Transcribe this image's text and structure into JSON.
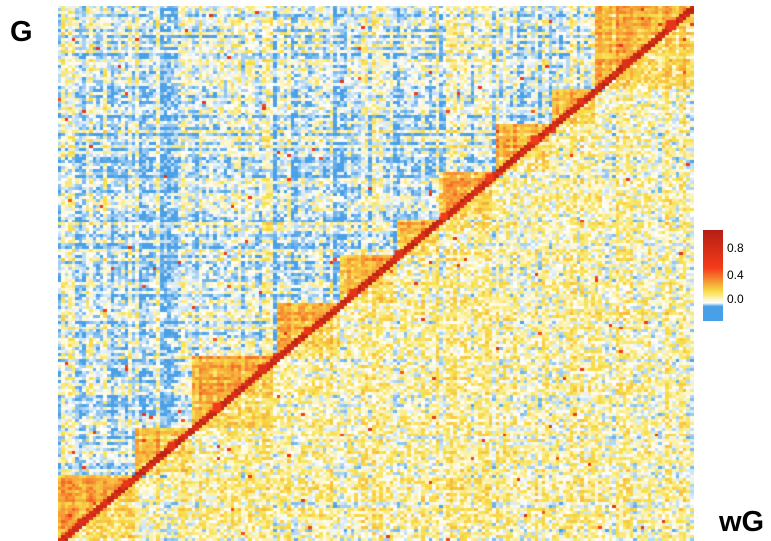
{
  "chart_data": {
    "type": "heatmap",
    "upper_triangle_label": "G",
    "lower_triangle_label": "wG",
    "colorbar": {
      "ticks": [
        0.8,
        0.4,
        0.0
      ],
      "tick_labels": [
        "0.8",
        "0.4",
        "0.0"
      ],
      "stops": [
        {
          "value": -0.1,
          "color": "#4aa0e6"
        },
        {
          "value": 0.0,
          "color": "#ffffff"
        },
        {
          "value": 0.1,
          "color": "#f7e04a"
        },
        {
          "value": 0.4,
          "color": "#f53c1a"
        },
        {
          "value": 0.9,
          "color": "#b41e14"
        }
      ]
    },
    "diagonal_blocks_n": 14
  }
}
